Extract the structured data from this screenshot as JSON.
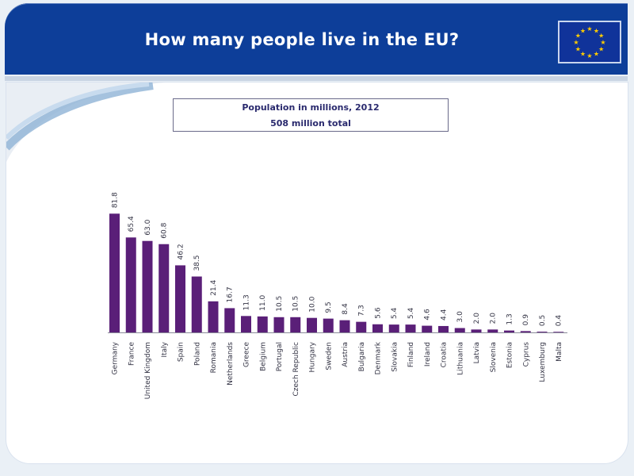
{
  "header": {
    "title": "How many people live in the EU?",
    "flag_icon": "eu-flag-icon"
  },
  "colors": {
    "header_bg": "#0d3e99",
    "bar": "#5a1f78",
    "flag_blue": "#10339a",
    "flag_star": "#ffcc00"
  },
  "chart_data": {
    "type": "bar",
    "title": "Population in millions, 2012",
    "subtitle": "508 million total",
    "xlabel": "",
    "ylabel": "",
    "ylim": [
      0,
      90
    ],
    "grid": false,
    "categories": [
      "Germany",
      "France",
      "United Kingdom",
      "Italy",
      "Spain",
      "Poland",
      "Romania",
      "Netherlands",
      "Greece",
      "Belgium",
      "Portugal",
      "Czech Republic",
      "Hungary",
      "Sweden",
      "Austria",
      "Bulgaria",
      "Denmark",
      "Slovakia",
      "Finland",
      "Ireland",
      "Croatia",
      "Lithuania",
      "Latvia",
      "Slovenia",
      "Estonia",
      "Cyprus",
      "Luxemburg",
      "Malta"
    ],
    "values": [
      81.8,
      65.4,
      63.0,
      60.8,
      46.2,
      38.5,
      21.4,
      16.7,
      11.3,
      11.0,
      10.5,
      10.5,
      10.0,
      9.5,
      8.4,
      7.3,
      5.6,
      5.4,
      5.4,
      4.6,
      4.4,
      3.0,
      2.0,
      2.0,
      1.3,
      0.9,
      0.5,
      0.4
    ],
    "value_labels": [
      "81.8",
      "65.4",
      "63.0",
      "60.8",
      "46.2",
      "38.5",
      "21.4",
      "16.7",
      "11.3",
      "11.0",
      "10.5",
      "10.5",
      "10.0",
      "9.5",
      "8.4",
      "7.3",
      "5.6",
      "5.4",
      "5.4",
      "4.6",
      "4.4",
      "3.0",
      "2.0",
      "2.0",
      "1.3",
      "0.9",
      "0.5",
      "0.4"
    ]
  }
}
